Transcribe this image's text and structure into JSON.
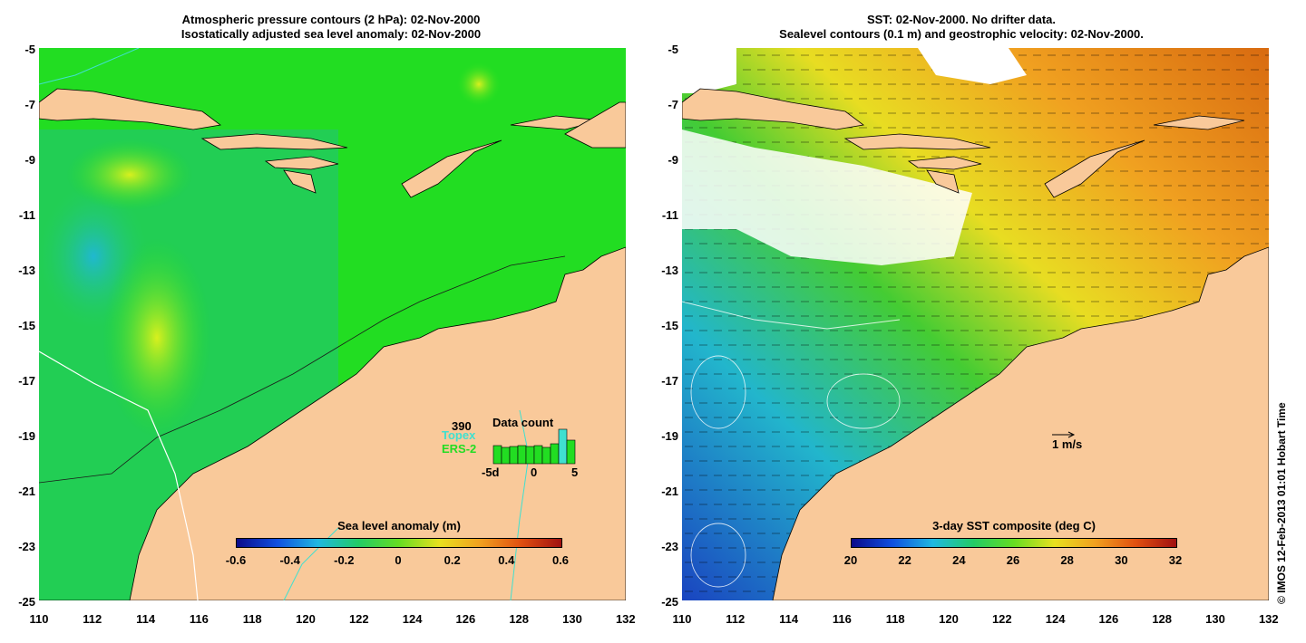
{
  "left_panel": {
    "title_line1": "Atmospheric pressure contours (2 hPa): 02-Nov-2000",
    "title_line2": "Isostatically adjusted sea level anomaly: 02-Nov-2000",
    "colorbar_title": "Sea level anomaly (m)",
    "colorbar_ticks": [
      "-0.6",
      "-0.4",
      "-0.2",
      "0",
      "0.2",
      "0.4",
      "0.6"
    ],
    "data_count": {
      "title": "Data count",
      "max_label": "390",
      "series_topex": "Topex",
      "series_ers2": "ERS-2",
      "axis_labels": [
        "-5d",
        "0",
        "5"
      ]
    }
  },
  "right_panel": {
    "title_line1": "SST: 02-Nov-2000. No drifter data.",
    "title_line2": "Sealevel contours (0.1 m) and geostrophic velocity: 02-Nov-2000.",
    "colorbar_title": "3-day SST composite (deg C)",
    "colorbar_ticks": [
      "20",
      "22",
      "24",
      "26",
      "28",
      "30",
      "32"
    ],
    "scale_label": "1 m/s"
  },
  "axes": {
    "y_ticks": [
      "-5",
      "-7",
      "-9",
      "-11",
      "-13",
      "-15",
      "-17",
      "-19",
      "-21",
      "-23",
      "-25"
    ],
    "x_ticks": [
      "110",
      "112",
      "114",
      "116",
      "118",
      "120",
      "122",
      "124",
      "126",
      "128",
      "130",
      "132"
    ]
  },
  "copyright": "© IMOS 12-Feb-2013 01:01 Hobart Time",
  "colors": {
    "land": "#f9c99a",
    "sla_base": "#22dd22",
    "coast": "#000000",
    "contour": "#40e0d0"
  }
}
